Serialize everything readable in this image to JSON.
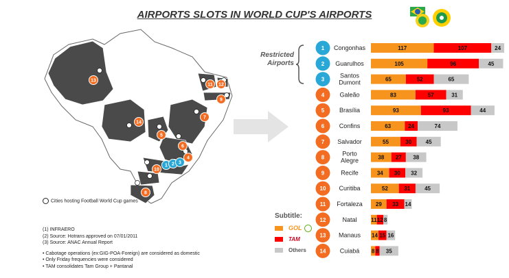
{
  "title": "AIRPORTS SLOTS IN WORLD CUP'S AIRPORTS",
  "restricted_label": "Restricted Airports",
  "map_legend": "Cities hosting Football World Cup games",
  "notes": {
    "sources": [
      "(1)   INFRAERO",
      "(2)   Source: Hotrans approved on 07/01/2011",
      "(3)   Source: ANAC Annual Report"
    ],
    "bullets": [
      "Cabotage operations (ex:GIG-POA-Foreign) are considered as domestic",
      "Only Friday frequencies were considered",
      "TAM consolidates Tam Group + Pantanal"
    ]
  },
  "subtitle": {
    "title": "Subtitle:",
    "gol_label": "GOL",
    "tam_label": "TAM",
    "others_label": "Others"
  },
  "colors": {
    "gol": "#f7941d",
    "tam": "#ff0000",
    "others": "#c8c8c8",
    "badge_blue": "#29a8d8",
    "badge_orange": "#f26c22"
  },
  "map_markers": [
    {
      "n": 13,
      "color": "orange"
    },
    {
      "n": 14,
      "color": "orange"
    },
    {
      "n": 5,
      "color": "orange"
    },
    {
      "n": 6,
      "color": "orange"
    },
    {
      "n": 7,
      "color": "orange"
    },
    {
      "n": 4,
      "color": "orange"
    },
    {
      "n": 1,
      "color": "blue"
    },
    {
      "n": 2,
      "color": "blue"
    },
    {
      "n": 3,
      "color": "blue"
    },
    {
      "n": 10,
      "color": "orange"
    },
    {
      "n": 8,
      "color": "orange"
    },
    {
      "n": 9,
      "color": "orange"
    },
    {
      "n": 11,
      "color": "orange"
    },
    {
      "n": 12,
      "color": "orange"
    }
  ],
  "chart_data": {
    "type": "bar",
    "orientation": "horizontal",
    "stacked": true,
    "categories": [
      "Congonhas",
      "Guarulhos",
      "Santos Dumont",
      "Galeão",
      "Brasília",
      "Confins",
      "Salvador",
      "Porto Alegre",
      "Recife",
      "Curitiba",
      "Fortaleza",
      "Natal",
      "Manaus",
      "Cuiabá"
    ],
    "numbers": [
      "1",
      "2",
      "3",
      "4",
      "5",
      "6",
      "7",
      "8",
      "9",
      "10",
      "11",
      "12",
      "13",
      "14"
    ],
    "restricted": [
      true,
      true,
      true,
      false,
      false,
      false,
      false,
      false,
      false,
      false,
      false,
      false,
      false,
      false
    ],
    "series": [
      {
        "name": "GOL",
        "values": [
          117,
          105,
          65,
          83,
          93,
          63,
          55,
          38,
          34,
          52,
          29,
          11,
          14,
          8
        ]
      },
      {
        "name": "TAM",
        "values": [
          107,
          96,
          52,
          57,
          93,
          24,
          30,
          27,
          30,
          31,
          33,
          12,
          15,
          8
        ]
      },
      {
        "name": "Others",
        "values": [
          24,
          45,
          65,
          31,
          44,
          74,
          45,
          38,
          32,
          45,
          14,
          8,
          16,
          35
        ]
      }
    ]
  }
}
